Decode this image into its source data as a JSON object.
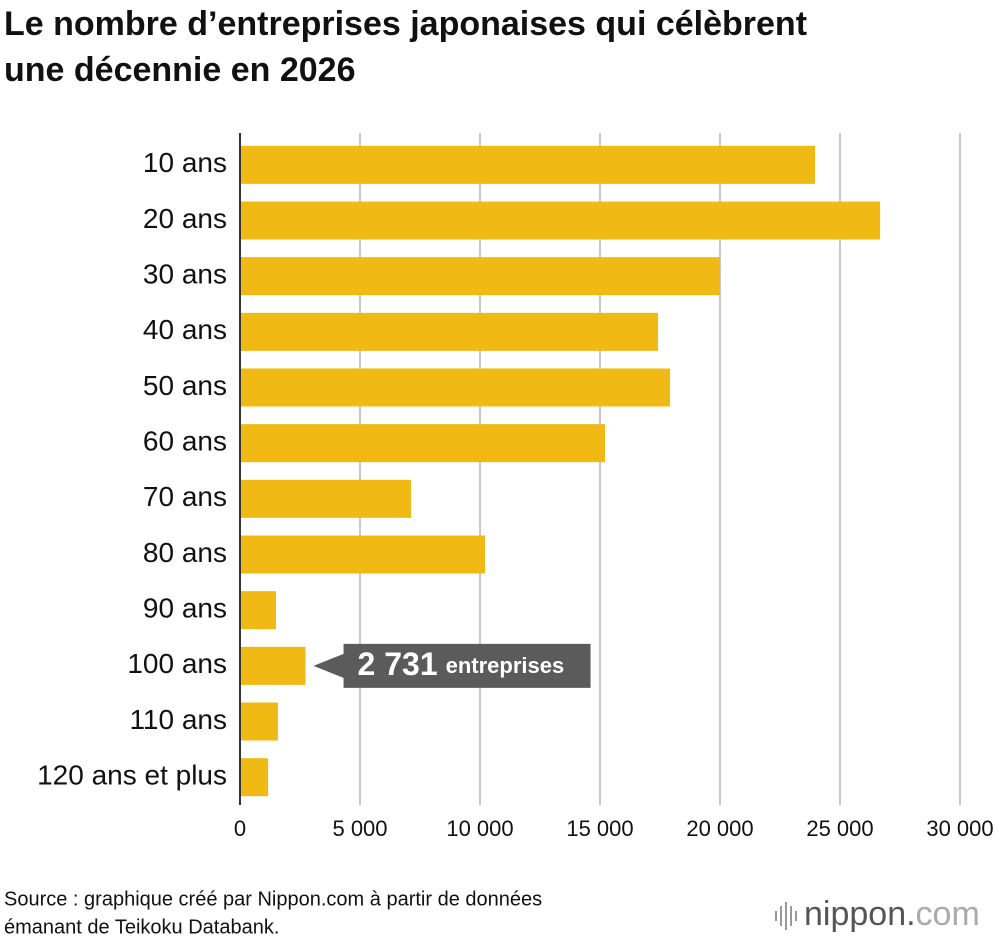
{
  "chart_data": {
    "type": "barh",
    "title_lines": [
      "Le nombre d’entreprises japonaises qui célèbrent",
      "une décennie en 2026"
    ],
    "categories": [
      "10 ans",
      "20 ans",
      "30 ans",
      "40 ans",
      "50 ans",
      "60 ans",
      "70 ans",
      "80 ans",
      "90 ans",
      "100 ans",
      "110 ans",
      "120 ans et plus"
    ],
    "values": [
      23960,
      26670,
      20000,
      17420,
      17920,
      15210,
      7130,
      10210,
      1500,
      2731,
      1580,
      1170
    ],
    "value_labels": [
      null,
      null,
      null,
      null,
      null,
      null,
      null,
      null,
      null,
      "2 731",
      null,
      null
    ],
    "value_label_unit": "entreprises",
    "color": "#f0b914",
    "xlim": [
      0,
      30000
    ],
    "xticks": [
      0,
      {
        "value": 5000,
        "label": "5 000"
      },
      {
        "value": 10000,
        "label": "10 000"
      },
      {
        "value": 15000,
        "label": "15 000"
      },
      {
        "value": 20000,
        "label": "20 000"
      },
      {
        "value": 25000,
        "label": "25 000"
      },
      {
        "value": 30000,
        "label": "30 000"
      }
    ],
    "grid": true,
    "source_lines": [
      "Source : graphique créé par Nippon.com à partir de données",
      "émanant de Teikoku Databank."
    ],
    "logo": [
      "nippon.",
      "com"
    ]
  }
}
